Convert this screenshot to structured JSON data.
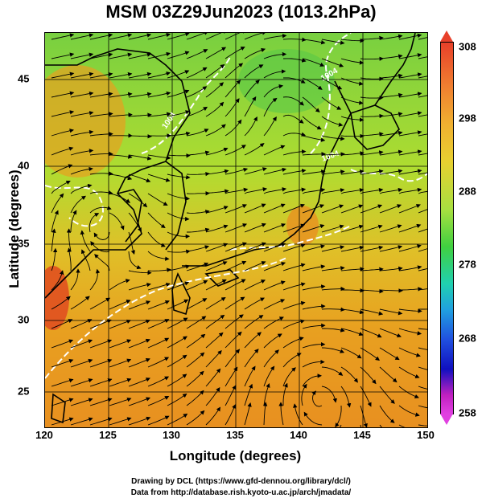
{
  "title": "MSM 03Z29Jun2023 (1013.2hPa)",
  "x_axis": {
    "label": "Longitude (degrees)",
    "ticks": [
      "120",
      "125",
      "130",
      "135",
      "140",
      "145",
      "150"
    ],
    "range": [
      120,
      150
    ]
  },
  "y_axis": {
    "label": "Latitude  (degrees)",
    "ticks": [
      "25",
      "30",
      "35",
      "40",
      "45"
    ],
    "range": [
      22.4,
      47.6
    ]
  },
  "colorbar": {
    "ticks": [
      "308",
      "298",
      "288",
      "278",
      "268",
      "258"
    ],
    "range": [
      258,
      308
    ]
  },
  "contour_labels": [
    "1004",
    "1004",
    "1004"
  ],
  "footer": {
    "line1": "Drawing by DCL (https://www.gfd-dennou.org/library/dcl/)",
    "line2": "Data from http://database.rish.kyoto-u.ac.jp/arch/jmadata/"
  }
}
